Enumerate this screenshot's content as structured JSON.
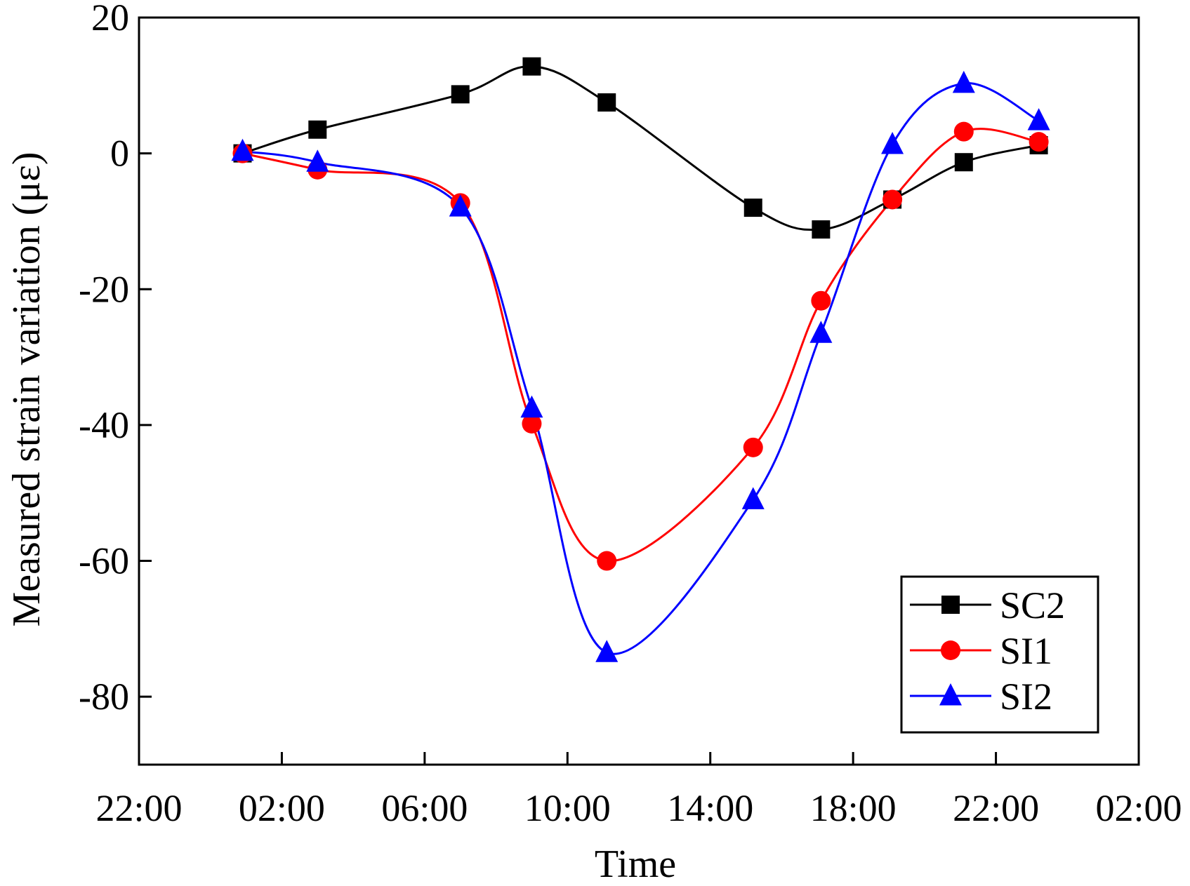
{
  "chart_data": {
    "type": "line",
    "title": "",
    "xlabel": "Time",
    "ylabel": "Measured strain variation (με)",
    "x_unit": "hours since 22:00",
    "xlim": [
      0,
      28
    ],
    "ylim": [
      -90,
      20
    ],
    "x_ticks": [
      {
        "value": 0,
        "label": "22:00"
      },
      {
        "value": 4,
        "label": "02:00"
      },
      {
        "value": 8,
        "label": "06:00"
      },
      {
        "value": 12,
        "label": "10:00"
      },
      {
        "value": 16,
        "label": "14:00"
      },
      {
        "value": 20,
        "label": "18:00"
      },
      {
        "value": 24,
        "label": "22:00"
      },
      {
        "value": 28,
        "label": "02:00"
      }
    ],
    "y_ticks": [
      {
        "value": 20,
        "label": "20"
      },
      {
        "value": 0,
        "label": "0"
      },
      {
        "value": -20,
        "label": "-20"
      },
      {
        "value": -40,
        "label": "-40"
      },
      {
        "value": -60,
        "label": "-60"
      },
      {
        "value": -80,
        "label": "-80"
      }
    ],
    "x": [
      2.9,
      5.0,
      9.0,
      11.0,
      13.1,
      17.2,
      19.1,
      21.1,
      23.1,
      25.2
    ],
    "series": [
      {
        "name": "SC2",
        "color": "#000000",
        "marker": "square",
        "values": [
          0,
          3.5,
          8.7,
          12.8,
          7.5,
          -8,
          -11.2,
          -6.8,
          -1.3,
          1.2
        ]
      },
      {
        "name": "SI1",
        "color": "#ff0000",
        "marker": "circle",
        "values": [
          0,
          -2.4,
          -7.3,
          -39.8,
          -60,
          -43.3,
          -21.7,
          -6.8,
          3.2,
          1.7
        ]
      },
      {
        "name": "SI2",
        "color": "#0000ff",
        "marker": "triangle",
        "values": [
          0.3,
          -1.3,
          -7.9,
          -37.5,
          -73.5,
          -51,
          -26.5,
          1.3,
          10.3,
          4.8
        ]
      }
    ],
    "legend": {
      "position": "bottom-right"
    },
    "grid": false
  }
}
